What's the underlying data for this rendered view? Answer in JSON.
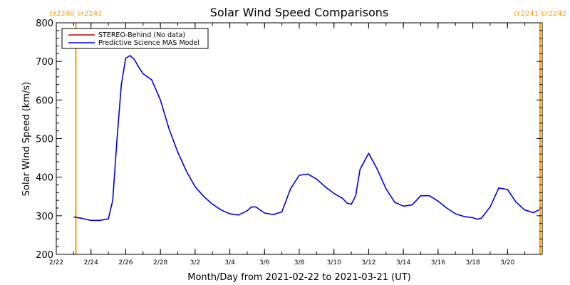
{
  "chart_data": {
    "type": "line",
    "title": "Solar Wind Speed Comparisons",
    "xlabel": "Month/Day from 2021-02-22 to 2021-03-21 (UT)",
    "ylabel": "Solar Wind Speed (km/s)",
    "xlim": [
      "2021-02-22",
      "2021-03-22"
    ],
    "ylim": [
      200,
      800
    ],
    "y_ticks": [
      200,
      300,
      400,
      500,
      600,
      700,
      800
    ],
    "x_ticks": [
      {
        "date": "2021-02-22",
        "label": "2/22"
      },
      {
        "date": "2021-02-24",
        "label": "2/24"
      },
      {
        "date": "2021-02-26",
        "label": "2/26"
      },
      {
        "date": "2021-02-28",
        "label": "2/28"
      },
      {
        "date": "2021-03-02",
        "label": "3/2"
      },
      {
        "date": "2021-03-04",
        "label": "3/4"
      },
      {
        "date": "2021-03-06",
        "label": "3/6"
      },
      {
        "date": "2021-03-08",
        "label": "3/8"
      },
      {
        "date": "2021-03-10",
        "label": "3/10"
      },
      {
        "date": "2021-03-12",
        "label": "3/12"
      },
      {
        "date": "2021-03-14",
        "label": "3/14"
      },
      {
        "date": "2021-03-16",
        "label": "3/16"
      },
      {
        "date": "2021-03-18",
        "label": "3/18"
      },
      {
        "date": "2021-03-20",
        "label": "3/20"
      }
    ],
    "legend": {
      "placement": "top-left",
      "entries": [
        {
          "label": "STEREO-Behind (No data)",
          "color": "#c00000"
        },
        {
          "label": "Predictive Science MAS Model",
          "color": "#0000dd"
        }
      ]
    },
    "markers": [
      {
        "date": "2021-02-23 03:00",
        "label_left": "cr2240",
        "label_right": "cr2241",
        "color": "#ff9900"
      },
      {
        "date": "2021-03-21 21:00",
        "label_left": "cr2241",
        "label_right": "cr2242",
        "color": "#ff9900"
      }
    ],
    "series": [
      {
        "name": "Predictive Science MAS Model",
        "color": "#0000dd",
        "x": [
          "2021-02-23 00:00",
          "2021-02-23 12:00",
          "2021-02-24 00:00",
          "2021-02-24 12:00",
          "2021-02-25 00:00",
          "2021-02-25 06:00",
          "2021-02-25 12:00",
          "2021-02-25 18:00",
          "2021-02-26 00:00",
          "2021-02-26 06:00",
          "2021-02-26 12:00",
          "2021-02-26 18:00",
          "2021-02-27 00:00",
          "2021-02-27 12:00",
          "2021-02-28 00:00",
          "2021-02-28 12:00",
          "2021-03-01 00:00",
          "2021-03-01 12:00",
          "2021-03-02 00:00",
          "2021-03-02 12:00",
          "2021-03-03 00:00",
          "2021-03-03 12:00",
          "2021-03-04 00:00",
          "2021-03-04 12:00",
          "2021-03-05 00:00",
          "2021-03-05 06:00",
          "2021-03-05 12:00",
          "2021-03-06 00:00",
          "2021-03-06 12:00",
          "2021-03-07 00:00",
          "2021-03-07 12:00",
          "2021-03-08 00:00",
          "2021-03-08 12:00",
          "2021-03-09 00:00",
          "2021-03-09 12:00",
          "2021-03-10 00:00",
          "2021-03-10 12:00",
          "2021-03-10 18:00",
          "2021-03-11 00:00",
          "2021-03-11 06:00",
          "2021-03-11 12:00",
          "2021-03-12 00:00",
          "2021-03-12 12:00",
          "2021-03-13 00:00",
          "2021-03-13 12:00",
          "2021-03-14 00:00",
          "2021-03-14 12:00",
          "2021-03-15 00:00",
          "2021-03-15 12:00",
          "2021-03-16 00:00",
          "2021-03-16 12:00",
          "2021-03-17 00:00",
          "2021-03-17 12:00",
          "2021-03-18 00:00",
          "2021-03-18 06:00",
          "2021-03-18 12:00",
          "2021-03-19 00:00",
          "2021-03-19 12:00",
          "2021-03-20 00:00",
          "2021-03-20 12:00",
          "2021-03-21 00:00",
          "2021-03-21 12:00",
          "2021-03-21 20:00"
        ],
        "y": [
          297,
          293,
          288,
          288,
          292,
          340,
          500,
          640,
          708,
          715,
          705,
          685,
          668,
          652,
          600,
          525,
          465,
          415,
          375,
          350,
          330,
          315,
          305,
          302,
          313,
          323,
          323,
          307,
          303,
          310,
          370,
          405,
          408,
          395,
          375,
          358,
          345,
          333,
          330,
          352,
          420,
          462,
          420,
          370,
          335,
          325,
          328,
          352,
          352,
          338,
          320,
          305,
          298,
          295,
          291,
          294,
          323,
          372,
          368,
          335,
          315,
          308,
          316
        ]
      }
    ]
  }
}
